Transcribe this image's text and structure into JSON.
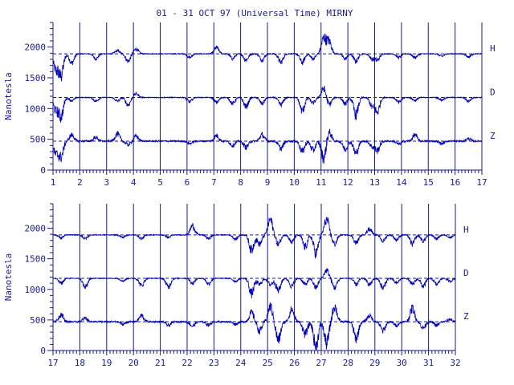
{
  "colors": {
    "ink": "#1a1a8c",
    "trace": "#0000b4",
    "background": "#ffffff"
  },
  "chart_data": {
    "type": "line",
    "title": "01 - 31 OCT 97 (Universal Time) MIRNY",
    "ylabel": "Nanotesla",
    "ylim": [
      0,
      2400
    ],
    "yticks": [
      0,
      500,
      1000,
      1500,
      2000
    ],
    "components": [
      "H",
      "D",
      "Z"
    ],
    "baselines": {
      "H": 1890,
      "D": 1180,
      "Z": 470
    },
    "reference_lines": "dashed at each component baseline",
    "grid": "vertical lines at each day boundary",
    "panels": [
      {
        "xlim": [
          1,
          17
        ],
        "xticks": [
          1,
          2,
          3,
          4,
          5,
          6,
          7,
          8,
          9,
          10,
          11,
          12,
          13,
          14,
          15,
          16,
          17
        ],
        "disturbances": [
          {
            "x": 1.1,
            "H": -250,
            "D": -200,
            "Z": -200
          },
          {
            "x": 1.3,
            "H": -350,
            "D": -300,
            "Z": -250
          },
          {
            "x": 1.7,
            "H": -150,
            "D": -50,
            "Z": 100
          },
          {
            "x": 2.6,
            "H": -80,
            "D": -60,
            "Z": 60
          },
          {
            "x": 3.4,
            "H": 50,
            "D": -60,
            "Z": 120
          },
          {
            "x": 3.8,
            "H": -120,
            "D": -120,
            "Z": -60
          },
          {
            "x": 4.1,
            "H": 80,
            "D": 60,
            "Z": 80
          },
          {
            "x": 6.1,
            "H": -60,
            "D": -70,
            "Z": -40
          },
          {
            "x": 7.1,
            "H": 100,
            "D": -80,
            "Z": 90
          },
          {
            "x": 7.7,
            "H": -80,
            "D": -100,
            "Z": -70
          },
          {
            "x": 8.2,
            "H": -100,
            "D": -150,
            "Z": -100
          },
          {
            "x": 8.8,
            "H": -100,
            "D": -100,
            "Z": 100
          },
          {
            "x": 9.5,
            "H": -140,
            "D": -120,
            "Z": -120
          },
          {
            "x": 10.3,
            "H": -140,
            "D": -220,
            "Z": -170
          },
          {
            "x": 10.7,
            "H": -80,
            "D": -90,
            "Z": -150
          },
          {
            "x": 11.1,
            "H": 250,
            "D": 150,
            "Z": -280
          },
          {
            "x": 11.3,
            "H": 200,
            "D": -120,
            "Z": 150
          },
          {
            "x": 11.9,
            "H": -80,
            "D": -100,
            "Z": -130
          },
          {
            "x": 12.3,
            "H": -120,
            "D": -280,
            "Z": -200
          },
          {
            "x": 12.9,
            "H": -80,
            "D": -140,
            "Z": -80
          },
          {
            "x": 13.1,
            "H": -100,
            "D": -230,
            "Z": -150
          },
          {
            "x": 13.9,
            "H": -60,
            "D": -80,
            "Z": -50
          },
          {
            "x": 14.5,
            "H": -60,
            "D": -50,
            "Z": 100
          },
          {
            "x": 15.5,
            "H": -40,
            "D": -40,
            "Z": -40
          },
          {
            "x": 16.5,
            "H": -50,
            "D": -60,
            "Z": 40
          }
        ]
      },
      {
        "xlim": [
          17,
          32
        ],
        "xticks": [
          17,
          18,
          19,
          20,
          21,
          22,
          23,
          24,
          25,
          26,
          27,
          28,
          29,
          30,
          31,
          32
        ],
        "disturbances": [
          {
            "x": 17.3,
            "H": -50,
            "D": -80,
            "Z": 120
          },
          {
            "x": 18.2,
            "H": -60,
            "D": -150,
            "Z": 60
          },
          {
            "x": 19.6,
            "H": -40,
            "D": -40,
            "Z": -40
          },
          {
            "x": 20.3,
            "H": -60,
            "D": -120,
            "Z": 100
          },
          {
            "x": 21.3,
            "H": -40,
            "D": -140,
            "Z": -60
          },
          {
            "x": 22.2,
            "H": 150,
            "D": -80,
            "Z": -70
          },
          {
            "x": 22.8,
            "H": -60,
            "D": -90,
            "Z": -50
          },
          {
            "x": 23.8,
            "H": -70,
            "D": -50,
            "Z": -40
          },
          {
            "x": 24.4,
            "H": -250,
            "D": -250,
            "Z": 150
          },
          {
            "x": 24.7,
            "H": -150,
            "D": -100,
            "Z": -150
          },
          {
            "x": 25.1,
            "H": 250,
            "D": -100,
            "Z": 250
          },
          {
            "x": 25.4,
            "H": -150,
            "D": -200,
            "Z": -300
          },
          {
            "x": 25.9,
            "H": -120,
            "D": -130,
            "Z": 200
          },
          {
            "x": 26.4,
            "H": -200,
            "D": -100,
            "Z": -200
          },
          {
            "x": 26.8,
            "H": -300,
            "D": -150,
            "Z": -400
          },
          {
            "x": 27.2,
            "H": 250,
            "D": 130,
            "Z": -350
          },
          {
            "x": 27.5,
            "H": -150,
            "D": -150,
            "Z": 250
          },
          {
            "x": 28.3,
            "H": -130,
            "D": -100,
            "Z": -270
          },
          {
            "x": 28.8,
            "H": 100,
            "D": -100,
            "Z": 100
          },
          {
            "x": 29.3,
            "H": -100,
            "D": -160,
            "Z": -150
          },
          {
            "x": 29.8,
            "H": -80,
            "D": -80,
            "Z": -60
          },
          {
            "x": 30.4,
            "H": -150,
            "D": -100,
            "Z": 220
          },
          {
            "x": 30.8,
            "H": -100,
            "D": -130,
            "Z": -100
          },
          {
            "x": 31.3,
            "H": -60,
            "D": -100,
            "Z": -60
          },
          {
            "x": 31.8,
            "H": -40,
            "D": -50,
            "Z": 40
          }
        ]
      }
    ]
  }
}
